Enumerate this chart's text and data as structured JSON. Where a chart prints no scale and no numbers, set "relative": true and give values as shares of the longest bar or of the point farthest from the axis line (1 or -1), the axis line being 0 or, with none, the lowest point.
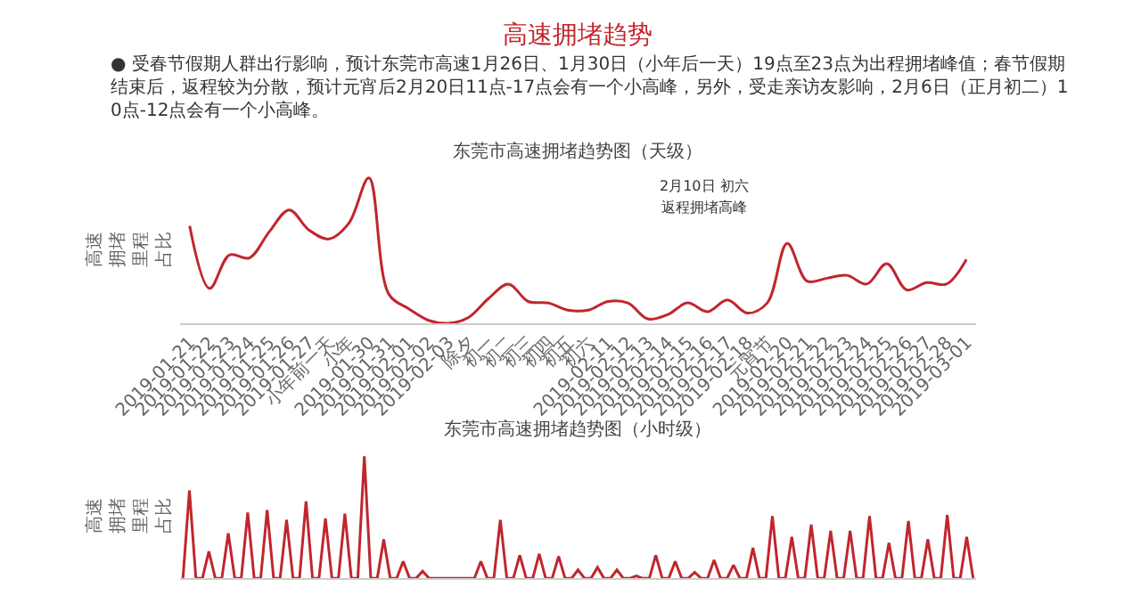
{
  "chart_data": [
    {
      "type": "line",
      "title": "高速拥堵趋势",
      "subtitle": "东莞市高速拥堵趋势图（天级）",
      "ylabel": "高速拥堵里程占比",
      "relative": true,
      "marker": "none",
      "line_style": "solid",
      "annotations": [
        "● 受春节假期人群出行影响，预计东莞市高速1月26日、1月30日（小年后一天）19点至23点为出程拥堵峰值；春节假期结束后，返程较为分散，预计元宵后2月20日11点-17点会有一个小高峰，另外，受走亲访友影响，2月6日（正月初二）10点-12点会有一个小高峰。",
        "2月10日 初六",
        "返程拥堵高峰"
      ],
      "categories": [
        "2019-01-21",
        "2019-01-22",
        "2019-01-23",
        "2019-01-24",
        "2019-01-25",
        "2019-01-26",
        "2019-01-27",
        "小年前一天",
        "小年",
        "2019-01-30",
        "2019-01-31",
        "2019-02-01",
        "2019-02-02",
        "2019-02-03",
        "除夕",
        "初一",
        "初二",
        "初三",
        "初四",
        "初五",
        "初六",
        "2019-02-11",
        "2019-02-12",
        "2019-02-13",
        "2019-02-14",
        "2019-02-15",
        "2019-02-16",
        "2019-02-17",
        "2019-02-18",
        "元宵节",
        "2019-02-20",
        "2019-02-21",
        "2019-02-22",
        "2019-02-23",
        "2019-02-24",
        "2019-02-25",
        "2019-02-26",
        "2019-02-27",
        "2019-02-28",
        "2019-03-01"
      ],
      "series": [
        {
          "color": "#c0262d",
          "values": [
            0.67,
            0.24,
            0.47,
            0.45,
            0.63,
            0.78,
            0.64,
            0.58,
            0.69,
            1.0,
            0.2,
            0.1,
            0.02,
            0,
            0.04,
            0.17,
            0.27,
            0.15,
            0.14,
            0.09,
            0.09,
            0.15,
            0.14,
            0.03,
            0.06,
            0.14,
            0.08,
            0.16,
            0.07,
            0.14,
            0.55,
            0.29,
            0.31,
            0.33,
            0.27,
            0.41,
            0.23,
            0.28,
            0.27,
            0.44
          ]
        }
      ]
    },
    {
      "type": "line",
      "title": "东莞市高速拥堵趋势图（小时级）",
      "ylabel": "高速拥堵里程占比",
      "relative": true,
      "marker": "none",
      "line_style": "solid",
      "categories": [
        null,
        null,
        null,
        null,
        null,
        null,
        null,
        null,
        null,
        null,
        null,
        null,
        null,
        null,
        null,
        null,
        null,
        null,
        null,
        null,
        null,
        null,
        null,
        null,
        null,
        null,
        null,
        null,
        null,
        null,
        null,
        null,
        null,
        null,
        null,
        null,
        null,
        null,
        null,
        null,
        null,
        null,
        null,
        null,
        null,
        null,
        null,
        null,
        null,
        null,
        null,
        null,
        null,
        null,
        null,
        null,
        null,
        null,
        null,
        null,
        null,
        null,
        null,
        null,
        null,
        null,
        null,
        null,
        null,
        null,
        null,
        null,
        null,
        null,
        null,
        null,
        null,
        null,
        null,
        null,
        null,
        null,
        null,
        null,
        null,
        null,
        null,
        null,
        null,
        null,
        null,
        null,
        null,
        null,
        null,
        null,
        null,
        null,
        null,
        null,
        null,
        null,
        null,
        null,
        null,
        null,
        null,
        null,
        null,
        null,
        null,
        null,
        null,
        null,
        null,
        null,
        null,
        null,
        null,
        null,
        null,
        null,
        null
      ],
      "series": [
        {
          "color": "#c0262d",
          "values": [
            0,
            0.72,
            0,
            0,
            0.22,
            0,
            0,
            0.37,
            0,
            0,
            0.54,
            0,
            0,
            0.56,
            0,
            0,
            0.48,
            0,
            0,
            0.63,
            0,
            0,
            0.49,
            0,
            0,
            0.53,
            0,
            0,
            1.0,
            0,
            0,
            0.32,
            0,
            0,
            0.14,
            0,
            0,
            0.06,
            0,
            0,
            0,
            0,
            0,
            0,
            0,
            0,
            0.14,
            0,
            0,
            0.48,
            0,
            0,
            0.19,
            0,
            0,
            0.2,
            0,
            0,
            0.18,
            0,
            0,
            0.07,
            0,
            0,
            0.09,
            0,
            0,
            0.07,
            0,
            0,
            0.02,
            0,
            0,
            0.19,
            0,
            0,
            0.14,
            0,
            0,
            0.05,
            0,
            0,
            0.15,
            0,
            0,
            0.11,
            0,
            0,
            0.25,
            0,
            0,
            0.51,
            0,
            0,
            0.34,
            0,
            0,
            0.44,
            0,
            0,
            0.39,
            0,
            0,
            0.39,
            0,
            0,
            0.51,
            0,
            0,
            0.29,
            0,
            0,
            0.47,
            0,
            0,
            0.32,
            0,
            0,
            0.52,
            0,
            0,
            0.34,
            0
          ]
        }
      ]
    }
  ]
}
